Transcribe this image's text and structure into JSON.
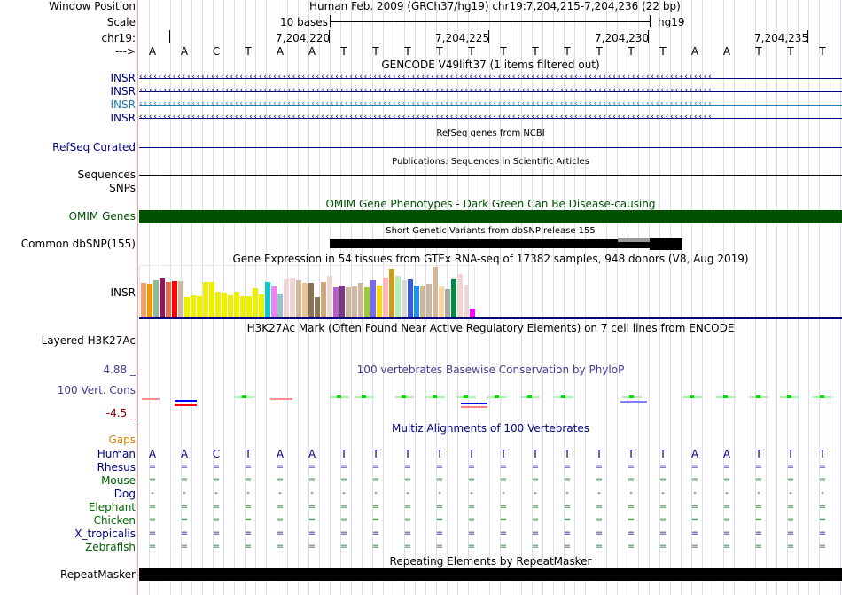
{
  "labels": {
    "window_position": "Window Position",
    "scale": "Scale",
    "chrom": "chr19:",
    "strand": "--->",
    "insr1": "INSR",
    "insr2": "INSR",
    "insr3": "INSR",
    "insr4": "INSR",
    "refseq": "RefSeq Curated",
    "sequences": "Sequences",
    "snps": "SNPs",
    "omim": "OMIM Genes",
    "dbsnp": "Common dbSNP(155)",
    "gtex": "INSR",
    "h3k27ac": "Layered H3K27Ac",
    "cons_max": "4.88 _",
    "cons": "100 Vert. Cons",
    "cons_min": "-4.5 _",
    "gaps": "Gaps",
    "repeatmasker": "RepeatMasker"
  },
  "header": {
    "assembly": "Human Feb. 2009 (GRCh37/hg19)   chr19:7,204,215-7,204,236 (22 bp)",
    "scale_label": "10 bases",
    "scale_db": "hg19",
    "ticks": [
      "7,204,220",
      "7,204,225",
      "7,204,230",
      "7,204,235"
    ]
  },
  "bases": [
    "A",
    "A",
    "C",
    "T",
    "A",
    "A",
    "T",
    "T",
    "T",
    "T",
    "T",
    "T",
    "T",
    "T",
    "T",
    "T",
    "T",
    "A",
    "A",
    "T",
    "T",
    "T"
  ],
  "titles": {
    "gencode": "GENCODE V49lift37 (1 items filtered out)",
    "refseq": "RefSeq genes from NCBI",
    "pubs": "Publications: Sequences in Scientific Articles",
    "omim": "OMIM Gene Phenotypes - Dark Green Can Be Disease-causing",
    "dbsnp": "Short Genetic Variants from dbSNP release 155",
    "gtex": "Gene Expression in 54 tissues from GTEx RNA-seq of 17382 samples, 948 donors (V8, Aug 2019)",
    "h3k27ac": "H3K27Ac Mark (Often Found Near Active Regulatory Elements) on 7 cell lines from ENCODE",
    "cons": "100 vertebrates Basewise Conservation by PhyloP",
    "multiz": "Multiz Alignments of 100 Vertebrates",
    "rmsk": "Repeating Elements by RepeatMasker"
  },
  "species": [
    {
      "name": "Human",
      "color": "#000080",
      "sym": "bases"
    },
    {
      "name": "Rhesus",
      "color": "#000080",
      "sym": "="
    },
    {
      "name": "Mouse",
      "color": "#006400",
      "sym": "="
    },
    {
      "name": "Dog",
      "color": "#000080",
      "sym": "-"
    },
    {
      "name": "Elephant",
      "color": "#006400",
      "sym": "="
    },
    {
      "name": "Chicken",
      "color": "#006400",
      "sym": "="
    },
    {
      "name": "X_tropicalis",
      "color": "#000080",
      "sym": "="
    },
    {
      "name": "Zebrafish",
      "color": "#006400",
      "sym": "="
    }
  ],
  "colors": {
    "omim": "#005000",
    "navy": "#000080",
    "insr3": "#1f77b4",
    "gaps": "#e08000",
    "cons": "#404090",
    "cons_min": "#800000"
  },
  "chart_data": {
    "type": "bar",
    "title": "Gene Expression in 54 tissues from GTEx RNA-seq of 17382 samples, 948 donors (V8, Aug 2019)",
    "values": [
      120,
      118,
      130,
      136,
      123,
      127,
      127,
      73,
      79,
      76,
      124,
      124,
      90,
      88,
      79,
      90,
      76,
      76,
      103,
      82,
      124,
      109,
      85,
      133,
      136,
      130,
      121,
      121,
      73,
      124,
      145,
      106,
      112,
      106,
      109,
      121,
      106,
      130,
      112,
      139,
      169,
      145,
      130,
      133,
      112,
      112,
      118,
      175,
      109,
      100,
      133,
      151,
      115,
      34
    ],
    "colors": [
      "#f4a460",
      "#ee9a00",
      "#8fbc8f",
      "#8b1c62",
      "#ee6a50",
      "#ff0000",
      "#cdb79e",
      "#eeee00",
      "#eeee00",
      "#eeee00",
      "#eeee00",
      "#eeee00",
      "#eeee00",
      "#eeee00",
      "#eeee00",
      "#eeee00",
      "#eeee00",
      "#eeee00",
      "#eeee00",
      "#eeee00",
      "#00cdcd",
      "#ee82ee",
      "#9ac0cd",
      "#eed5d2",
      "#eed5d2",
      "#cdb79e",
      "#eec591",
      "#8b7355",
      "#8b7355",
      "#cdaa7d",
      "#eed5d2",
      "#b460cd",
      "#7a378b",
      "#cdb79e",
      "#cdb79e",
      "#cdb79e",
      "#9acd32",
      "#7b68ee",
      "#ffd700",
      "#ffb6c1",
      "#cd9b1d",
      "#b4eeb4",
      "#d9d9d9",
      "#3a5fcd",
      "#1e90ff",
      "#cdb79e",
      "#cdb79e",
      "#cdb79e",
      "#ffd39b",
      "#a6a6a6",
      "#008b45",
      "#eed5d2",
      "#eed5d2",
      "#ff00ff"
    ]
  }
}
